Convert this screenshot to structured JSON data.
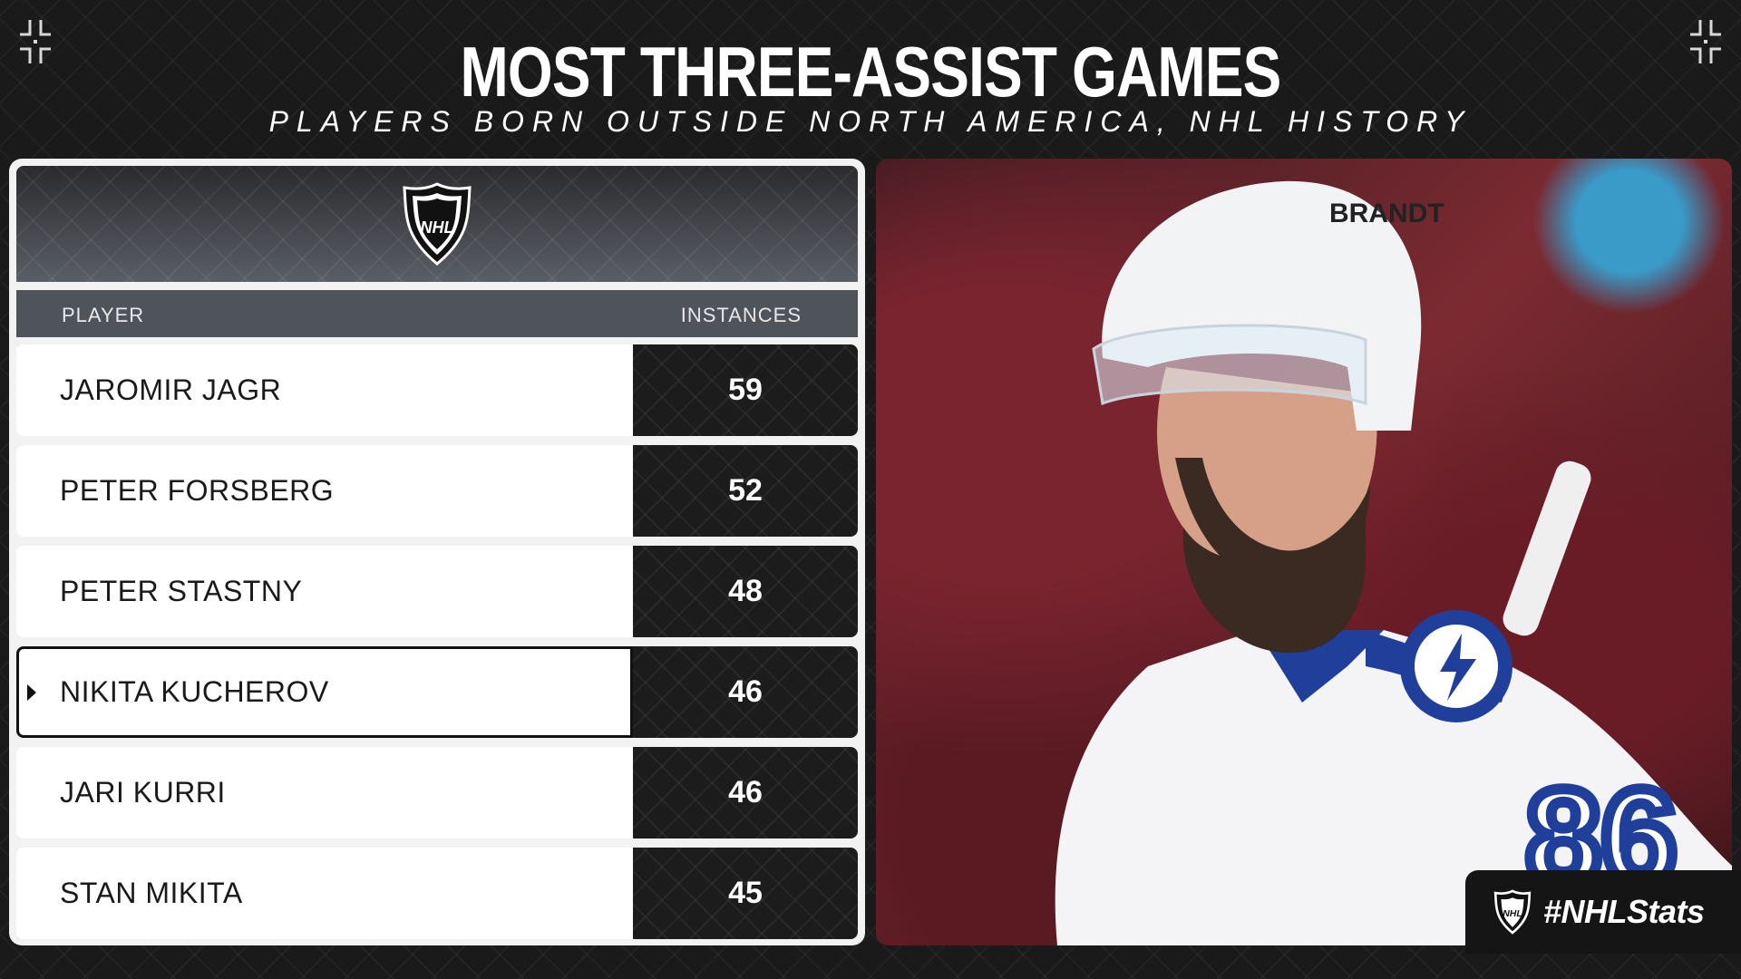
{
  "header": {
    "title": "MOST THREE-ASSIST GAMES",
    "subtitle": "PLAYERS BORN OUTSIDE NORTH AMERICA, NHL HISTORY"
  },
  "table": {
    "logo_text": "NHL",
    "columns": {
      "player": "PLAYER",
      "instances": "INSTANCES"
    },
    "rows": [
      {
        "player": "JAROMIR JAGR",
        "instances": "59"
      },
      {
        "player": "PETER FORSBERG",
        "instances": "52"
      },
      {
        "player": "PETER STASTNY",
        "instances": "48"
      },
      {
        "player": "NIKITA KUCHEROV",
        "instances": "46",
        "highlighted": true
      },
      {
        "player": "JARI KURRI",
        "instances": "46"
      },
      {
        "player": "STAN MIKITA",
        "instances": "45"
      }
    ]
  },
  "photo": {
    "jersey_number": "86",
    "helmet_text": "BRANDT"
  },
  "badge": {
    "logo_text": "NHL",
    "hashtag": "#NHLStats"
  },
  "colors": {
    "background": "#1a1a1a",
    "value_cell": "#1c1c1c",
    "column_header": "#4f535a",
    "lightning_blue": "#1f3f9a"
  }
}
